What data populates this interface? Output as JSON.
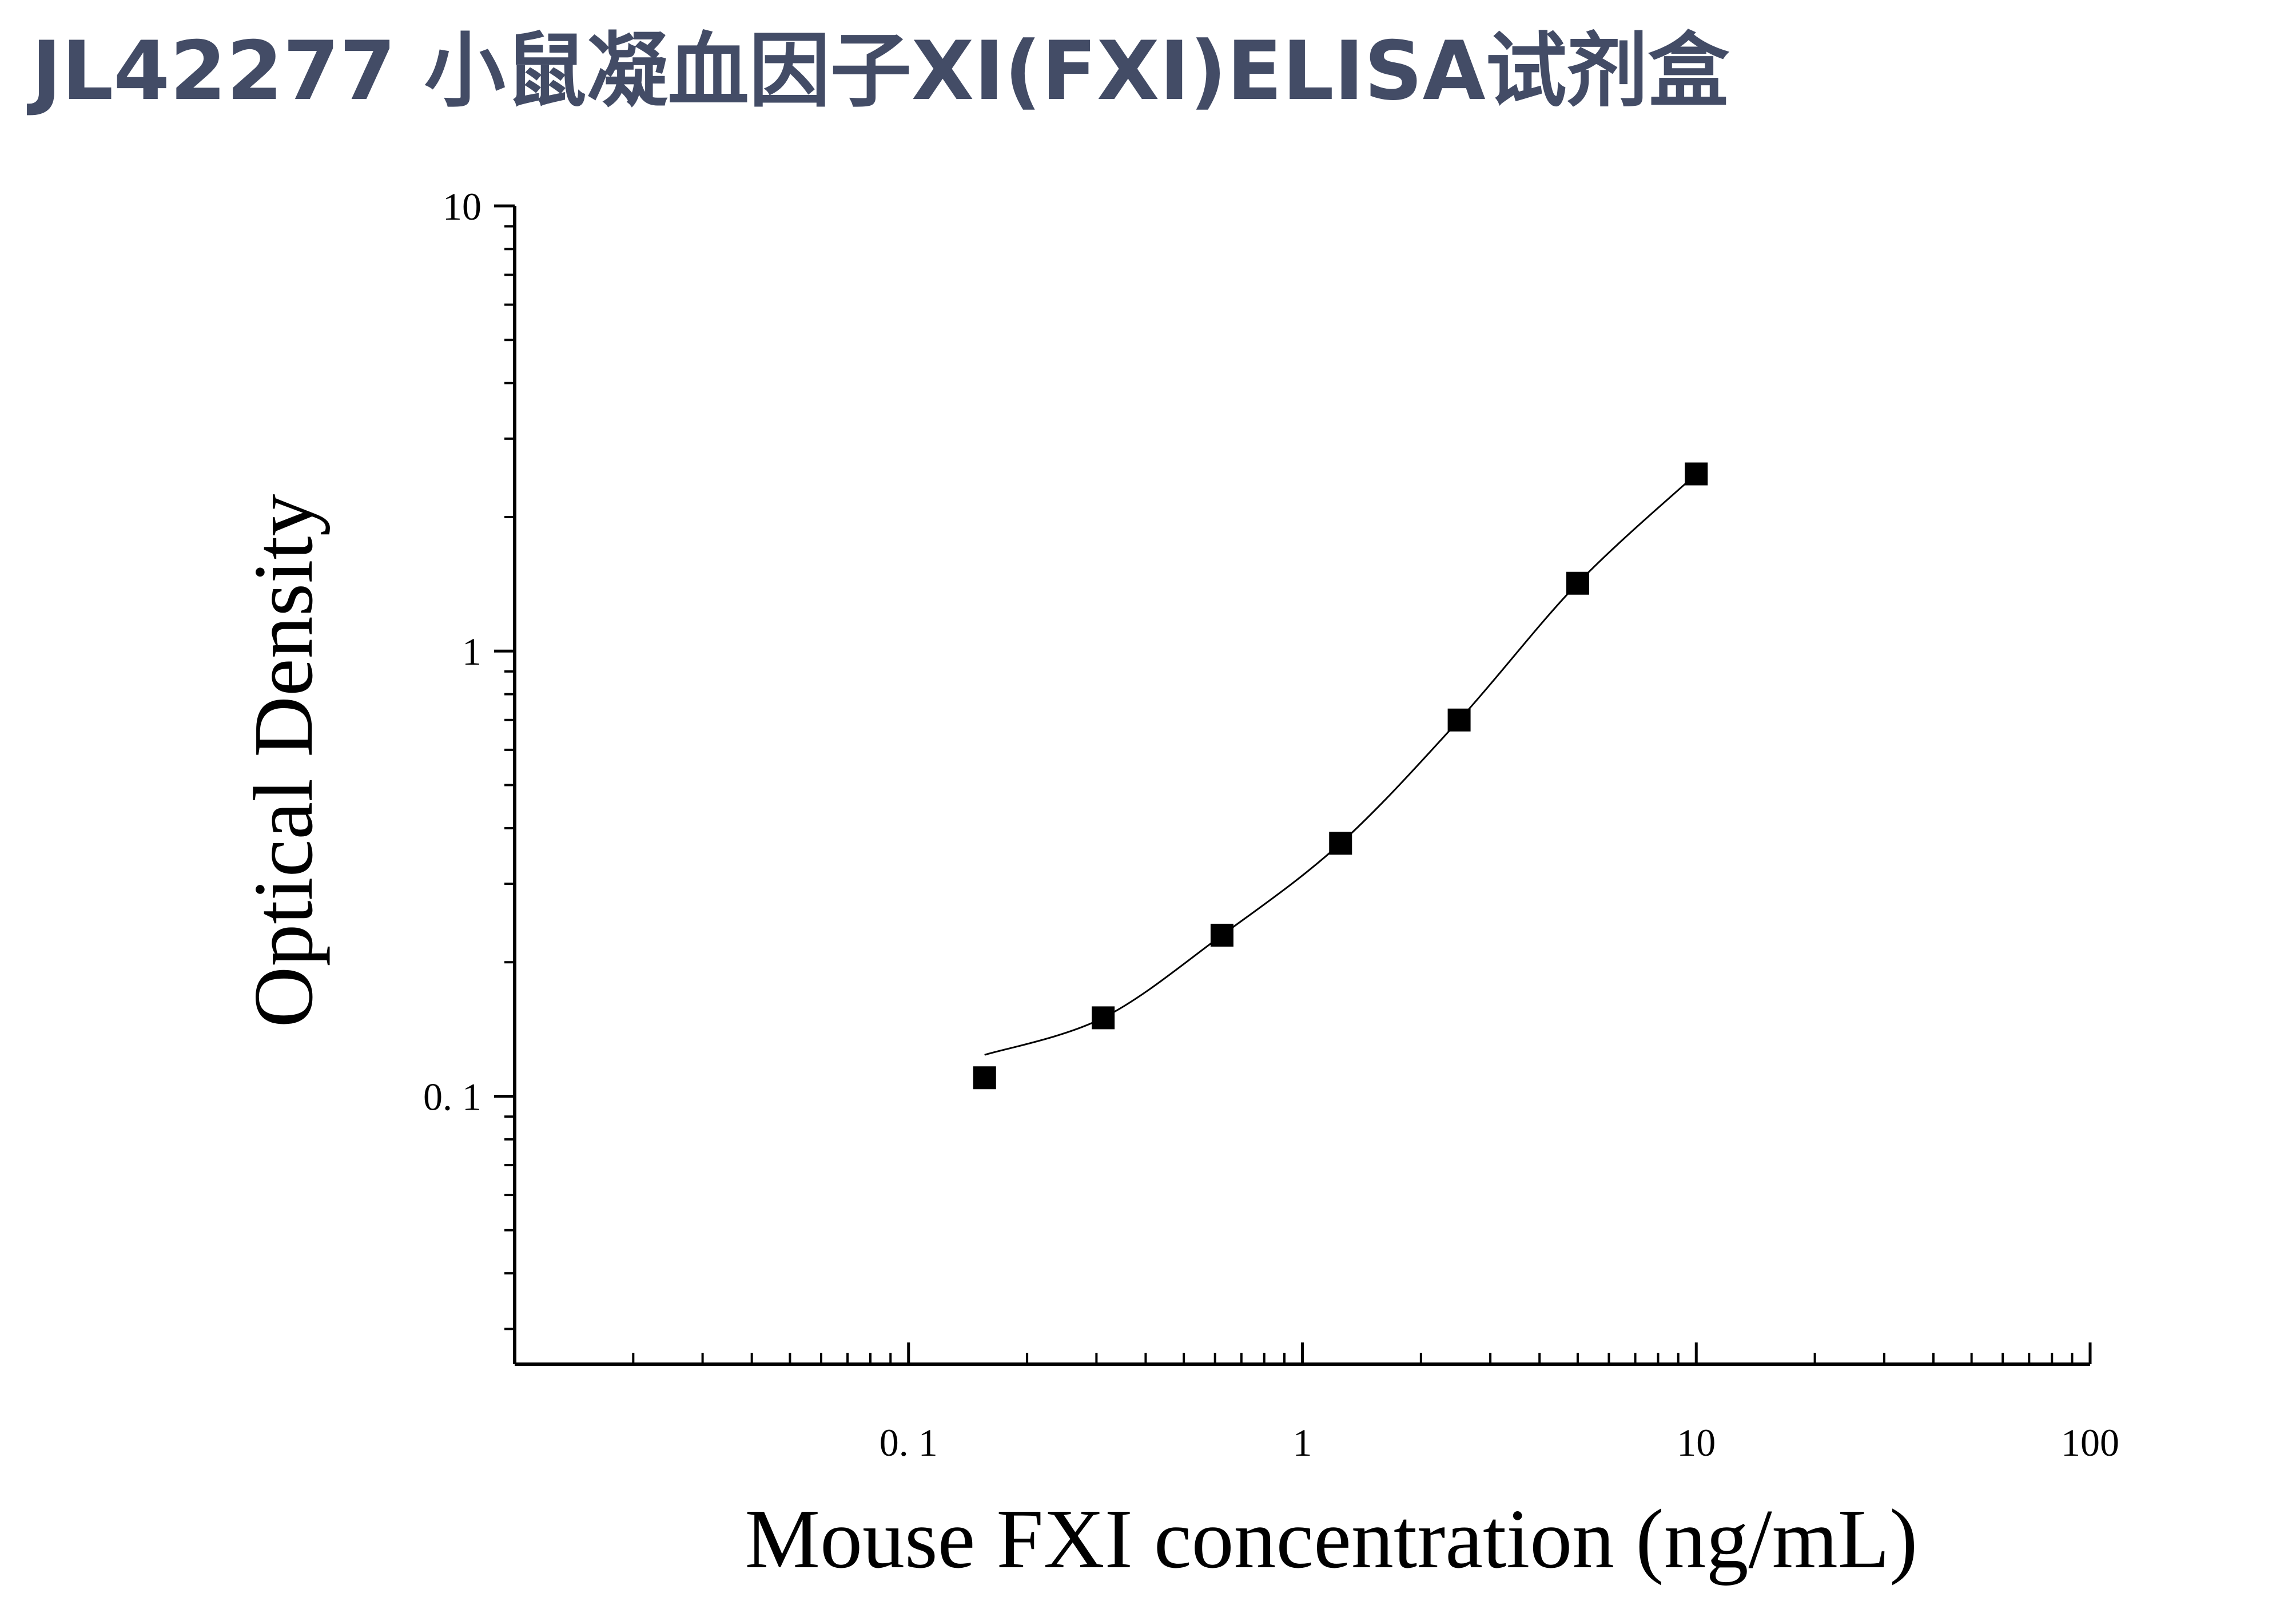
{
  "page_title": "JL42277 小鼠凝血因子XI(FXI)ELISA试剂盒",
  "chart_data": {
    "type": "scatter",
    "title": "",
    "xlabel": "Mouse FXI concentration (ng/mL)",
    "ylabel": "Optical Density",
    "xscale": "log",
    "yscale": "log",
    "xlim": [
      0.01,
      100
    ],
    "ylim": [
      0.025,
      10
    ],
    "x_ticks": [
      0.1,
      1,
      10,
      100
    ],
    "x_tick_labels": [
      "0. 1",
      "1",
      "10",
      "100"
    ],
    "y_ticks": [
      0.1,
      1,
      10
    ],
    "y_tick_labels": [
      "0. 1",
      "1",
      "10"
    ],
    "grid": false,
    "legend": "none",
    "marker": "square",
    "series": [
      {
        "x": [
          0.156,
          0.312,
          0.625,
          1.25,
          2.5,
          5,
          10
        ],
        "y": [
          0.11,
          0.15,
          0.23,
          0.37,
          0.7,
          1.42,
          2.5
        ]
      }
    ],
    "fit_curve": "4PL",
    "colors": {
      "marker": "#000000",
      "curve": "#000000",
      "title": "#434c66"
    }
  }
}
